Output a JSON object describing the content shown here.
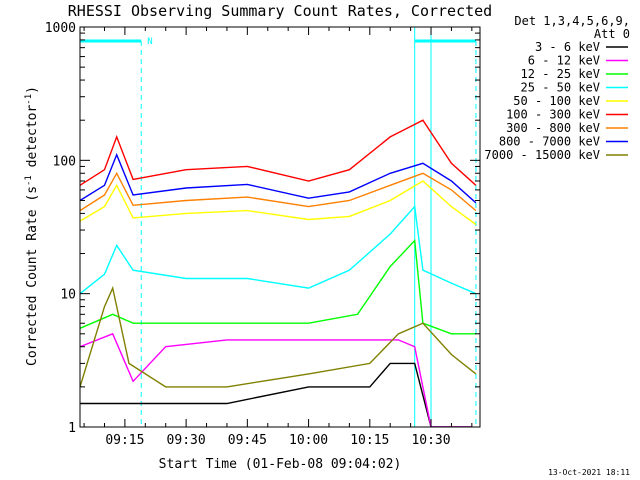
{
  "chart_data": {
    "type": "line",
    "title": "RHESSI Observing Summary Count Rates, Corrected",
    "xlabel": "Start Time (01-Feb-08 09:04:02)",
    "ylabel_prefix": "Corrected Count Rate (s",
    "ylabel_sup1": "-1",
    "ylabel_mid": " detector",
    "ylabel_sup2": "-1",
    "ylabel_suffix": ")",
    "y_scale": "log",
    "ylim": [
      1,
      1000
    ],
    "xlim": [
      "09:04",
      "10:42"
    ],
    "x_ticks": [
      "09:15",
      "09:30",
      "09:45",
      "10:00",
      "10:15",
      "10:30"
    ],
    "y_ticks": [
      "1",
      "10",
      "100",
      "1000"
    ],
    "legend_header_1": "Det 1,3,4,5,6,9,",
    "legend_header_2": "Att 0",
    "legend_position": "right",
    "night_marker_label": "N",
    "night_intervals": [
      [
        "09:04",
        "09:19"
      ],
      [
        "10:26",
        "10:41"
      ]
    ],
    "saa_lines": [
      "09:04",
      "10:26",
      "10:30"
    ],
    "series": [
      {
        "name": "3 - 6 keV",
        "color": "#000000",
        "x": [
          "09:04",
          "09:20",
          "09:40",
          "10:00",
          "10:15",
          "10:20",
          "10:26",
          "10:30",
          "10:40"
        ],
        "y": [
          1.5,
          1.5,
          1.5,
          2,
          2,
          3,
          3,
          1,
          1
        ]
      },
      {
        "name": "6 - 12 keV",
        "color": "#ff00ff",
        "x": [
          "09:04",
          "09:12",
          "09:17",
          "09:25",
          "09:40",
          "10:00",
          "10:15",
          "10:22",
          "10:26",
          "10:30",
          "10:40"
        ],
        "y": [
          4,
          5,
          2.2,
          4,
          4.5,
          4.5,
          4.5,
          4.5,
          4,
          1,
          1
        ]
      },
      {
        "name": "12 - 25 keV",
        "color": "#00ff00",
        "x": [
          "09:04",
          "09:12",
          "09:17",
          "09:30",
          "09:45",
          "10:00",
          "10:12",
          "10:20",
          "10:26",
          "10:28",
          "10:35",
          "10:41"
        ],
        "y": [
          5.5,
          7,
          6,
          6,
          6,
          6,
          7,
          16,
          25,
          6,
          5,
          5
        ]
      },
      {
        "name": "25 - 50 keV",
        "color": "#00ffff",
        "x": [
          "09:04",
          "09:10",
          "09:13",
          "09:17",
          "09:30",
          "09:45",
          "10:00",
          "10:10",
          "10:20",
          "10:26",
          "10:28",
          "10:35",
          "10:41"
        ],
        "y": [
          10,
          14,
          23,
          15,
          13,
          13,
          11,
          15,
          28,
          45,
          15,
          12,
          10
        ]
      },
      {
        "name": "50 - 100 keV",
        "color": "#ffff00",
        "x": [
          "09:04",
          "09:10",
          "09:13",
          "09:17",
          "09:30",
          "09:45",
          "10:00",
          "10:10",
          "10:20",
          "10:28",
          "10:35",
          "10:41"
        ],
        "y": [
          35,
          45,
          65,
          37,
          40,
          42,
          36,
          38,
          50,
          70,
          45,
          33
        ]
      },
      {
        "name": "100 - 300 keV",
        "color": "#ff0000",
        "x": [
          "09:04",
          "09:10",
          "09:13",
          "09:17",
          "09:30",
          "09:45",
          "10:00",
          "10:10",
          "10:20",
          "10:28",
          "10:35",
          "10:41"
        ],
        "y": [
          65,
          85,
          150,
          72,
          85,
          90,
          70,
          85,
          150,
          200,
          95,
          65
        ]
      },
      {
        "name": "300 - 800 keV",
        "color": "#ff8000",
        "x": [
          "09:04",
          "09:10",
          "09:13",
          "09:17",
          "09:30",
          "09:45",
          "10:00",
          "10:10",
          "10:20",
          "10:28",
          "10:35",
          "10:41"
        ],
        "y": [
          42,
          55,
          80,
          46,
          50,
          53,
          45,
          50,
          65,
          80,
          60,
          42
        ]
      },
      {
        "name": "800 - 7000 keV",
        "color": "#0000ff",
        "x": [
          "09:04",
          "09:10",
          "09:13",
          "09:17",
          "09:30",
          "09:45",
          "10:00",
          "10:10",
          "10:20",
          "10:28",
          "10:35",
          "10:41"
        ],
        "y": [
          50,
          65,
          110,
          55,
          62,
          66,
          52,
          58,
          80,
          95,
          70,
          48
        ]
      },
      {
        "name": "7000 - 15000 keV",
        "color": "#808000",
        "x": [
          "09:04",
          "09:10",
          "09:12",
          "09:16",
          "09:25",
          "09:40",
          "10:00",
          "10:15",
          "10:22",
          "10:28",
          "10:35",
          "10:41"
        ],
        "y": [
          2,
          8,
          11,
          3,
          2,
          2,
          2.5,
          3,
          5,
          6,
          3.5,
          2.5
        ]
      }
    ]
  },
  "timestamp": "13-Oct-2021 18:11"
}
